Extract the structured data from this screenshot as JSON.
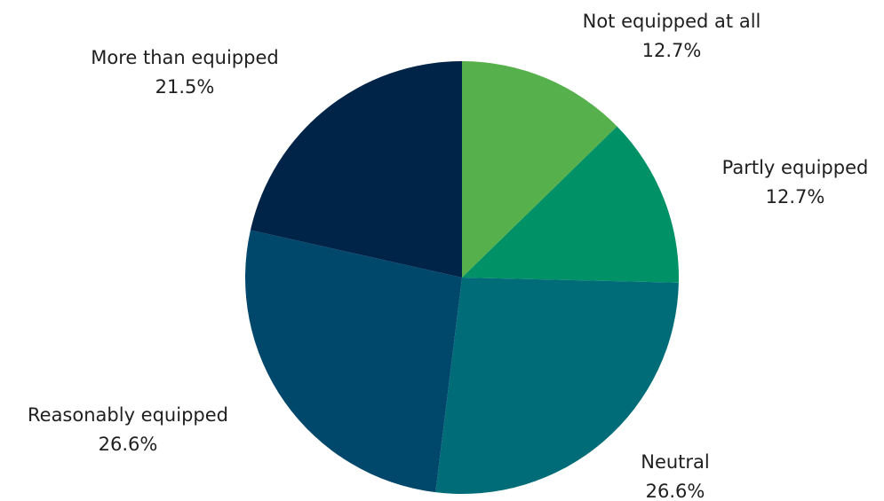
{
  "chart_data": {
    "type": "pie",
    "title": "",
    "start_angle_deg": 0,
    "direction": "clockwise",
    "legend": "none",
    "slices": [
      {
        "label": "Not equipped at all",
        "value": 12.7,
        "display": "12.7%",
        "color": "#56b04b"
      },
      {
        "label": "Partly equipped",
        "value": 12.7,
        "display": "12.7%",
        "color": "#009166"
      },
      {
        "label": "Neutral",
        "value": 26.6,
        "display": "26.6%",
        "color": "#006c78"
      },
      {
        "label": "Reasonably equipped",
        "value": 26.6,
        "display": "26.6%",
        "color": "#00476c"
      },
      {
        "label": "More than equipped",
        "value": 21.5,
        "display": "21.5%",
        "color": "#002348"
      }
    ]
  }
}
